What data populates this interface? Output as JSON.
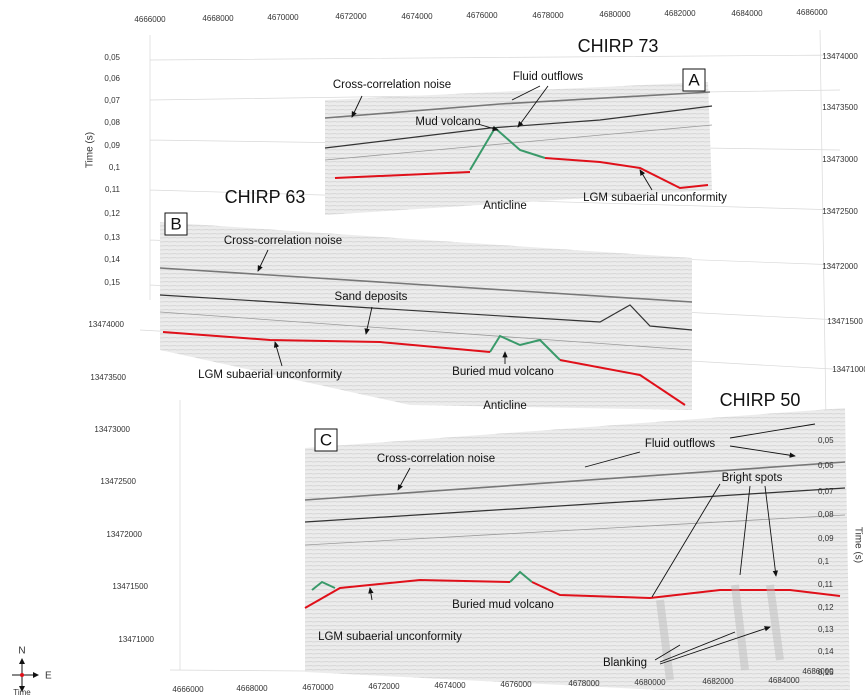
{
  "axes": {
    "time_label": "Time (s)",
    "top_eastings": [
      "4666000",
      "4668000",
      "4670000",
      "4672000",
      "4674000",
      "4676000",
      "4678000",
      "4680000",
      "4682000",
      "4684000",
      "4686000"
    ],
    "bottom_eastings": [
      "4666000",
      "4668000",
      "4670000",
      "4672000",
      "4674000",
      "4676000",
      "4678000",
      "4680000",
      "4682000",
      "4684000",
      "4686000"
    ],
    "left_time": [
      "0,05",
      "0,06",
      "0,07",
      "0,08",
      "0,09",
      "0,1",
      "0,11",
      "0,12",
      "0,13",
      "0,14",
      "0,15"
    ],
    "left_northings": [
      "13474000",
      "13473500",
      "13473000",
      "13472500",
      "13472000",
      "13471500",
      "13471000"
    ],
    "right_northings": [
      "13474000",
      "13473500",
      "13473000",
      "13472500",
      "13472000",
      "13471500",
      "13471000"
    ],
    "right_time": [
      "0,05",
      "0,06",
      "0,07",
      "0,08",
      "0,09",
      "0,1",
      "0,11",
      "0,12",
      "0,13",
      "0,14",
      "0,15"
    ]
  },
  "panels": [
    {
      "title": "CHIRP 73",
      "letter": "A",
      "annotations": [
        "Cross-correlation noise",
        "Fluid outflows",
        "Mud volcano",
        "Anticline",
        "LGM subaerial unconformity"
      ]
    },
    {
      "title": "CHIRP 63",
      "letter": "B",
      "annotations": [
        "Cross-correlation noise",
        "Sand deposits",
        "LGM subaerial unconformity",
        "Buried mud volcano",
        "Anticline"
      ]
    },
    {
      "title": "CHIRP 50",
      "letter": "C",
      "annotations": [
        "Fluid outflows",
        "Cross-correlation noise",
        "Bright spots",
        "Buried mud volcano",
        "LGM subaerial unconformity",
        "Blanking"
      ]
    }
  ],
  "compass": {
    "north": "N",
    "east": "E",
    "down": "Time"
  }
}
